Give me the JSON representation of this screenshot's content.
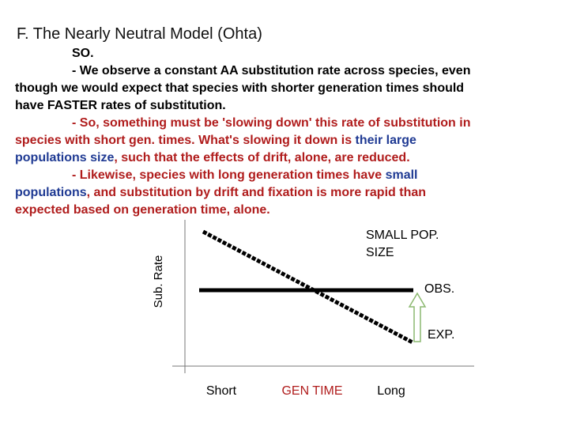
{
  "header": {
    "title": "F. The Nearly Neutral Model (Ohta)"
  },
  "body": [
    [
      [
        {
          "text": "SO.",
          "color": "#000000"
        }
      ]
    ],
    [
      [
        {
          "text": "- We observe a constant AA substitution rate across species, even",
          "color": "#000000"
        }
      ],
      [
        {
          "text": "though we would expect that species with shorter generation times should",
          "color": "#000000"
        }
      ],
      [
        {
          "text": "have FASTER rates of substitution.",
          "color": "#000000"
        }
      ]
    ],
    [
      [
        {
          "text": "- So, something must be 'slowing down' this rate of substitution in",
          "color": "#b01c1c"
        }
      ],
      [
        {
          "text": "species with short gen. times. What's slowing it down is ",
          "color": "#b01c1c"
        },
        {
          "text": "their large",
          "color": "#1f3a93"
        }
      ],
      [
        {
          "text": "populations size",
          "color": "#1f3a93"
        },
        {
          "text": ", such that the effects of drift, alone, are reduced.",
          "color": "#b01c1c"
        }
      ]
    ],
    [
      [
        {
          "text": "- Likewise, species with long generation times have ",
          "color": "#b01c1c"
        },
        {
          "text": "small",
          "color": "#1f3a93"
        }
      ],
      [
        {
          "text": "populations",
          "color": "#1f3a93"
        },
        {
          "text": ", and substitution by drift and fixation is more rapid than",
          "color": "#b01c1c"
        }
      ],
      [
        {
          "text": "expected based on generation time, alone.",
          "color": "#b01c1c"
        }
      ]
    ]
  ],
  "diagram": {
    "y_axis_label": "Sub. Rate",
    "small_pop_label": [
      "SMALL POP.",
      "SIZE"
    ],
    "obs_label": "OBS.",
    "exp_label": "EXP.",
    "x_labels": [
      {
        "text": "Short",
        "color": "#000000"
      },
      {
        "text": "GEN TIME",
        "color": "#b01c1c"
      },
      {
        "text": "Long",
        "color": "#000000"
      }
    ]
  }
}
